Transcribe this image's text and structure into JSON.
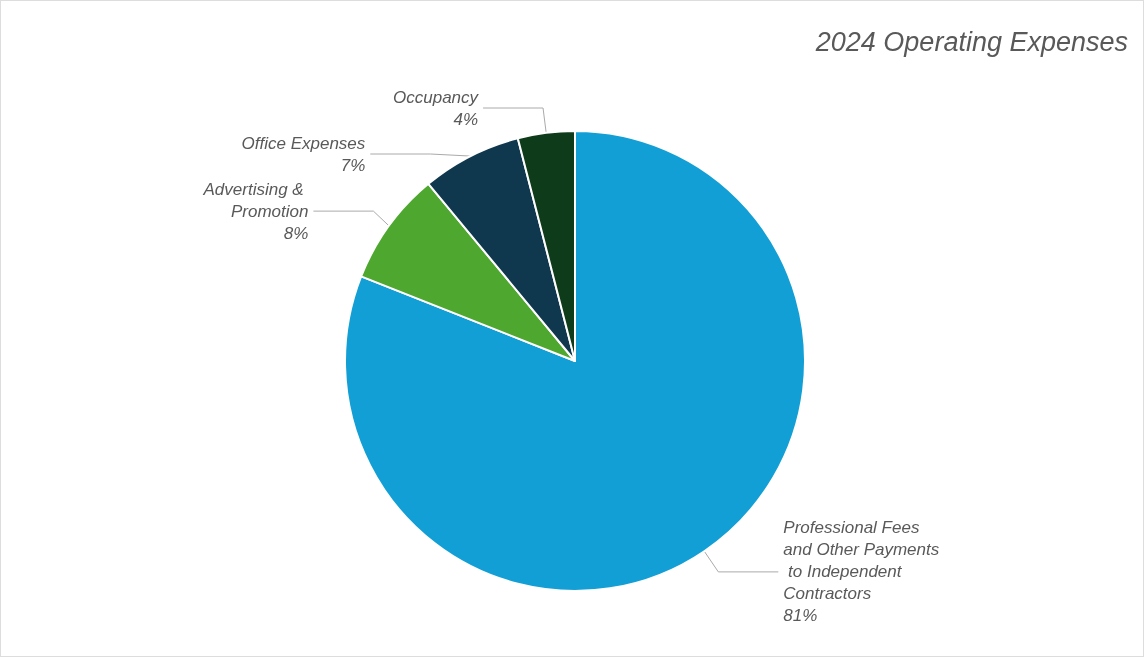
{
  "chart_data": {
    "type": "pie",
    "title": "2024 Operating Expenses",
    "categories": [
      "Professional Fees and Other Payments to Independent Contractors",
      "Advertising & Promotion",
      "Office Expenses",
      "Occupancy"
    ],
    "values": [
      81,
      8,
      7,
      4
    ],
    "colors": [
      "#129fd6",
      "#4ea72e",
      "#0f374d",
      "#0e3b19"
    ],
    "value_labels": [
      "81%",
      "8%",
      "7%",
      "4%"
    ],
    "legend": false
  }
}
